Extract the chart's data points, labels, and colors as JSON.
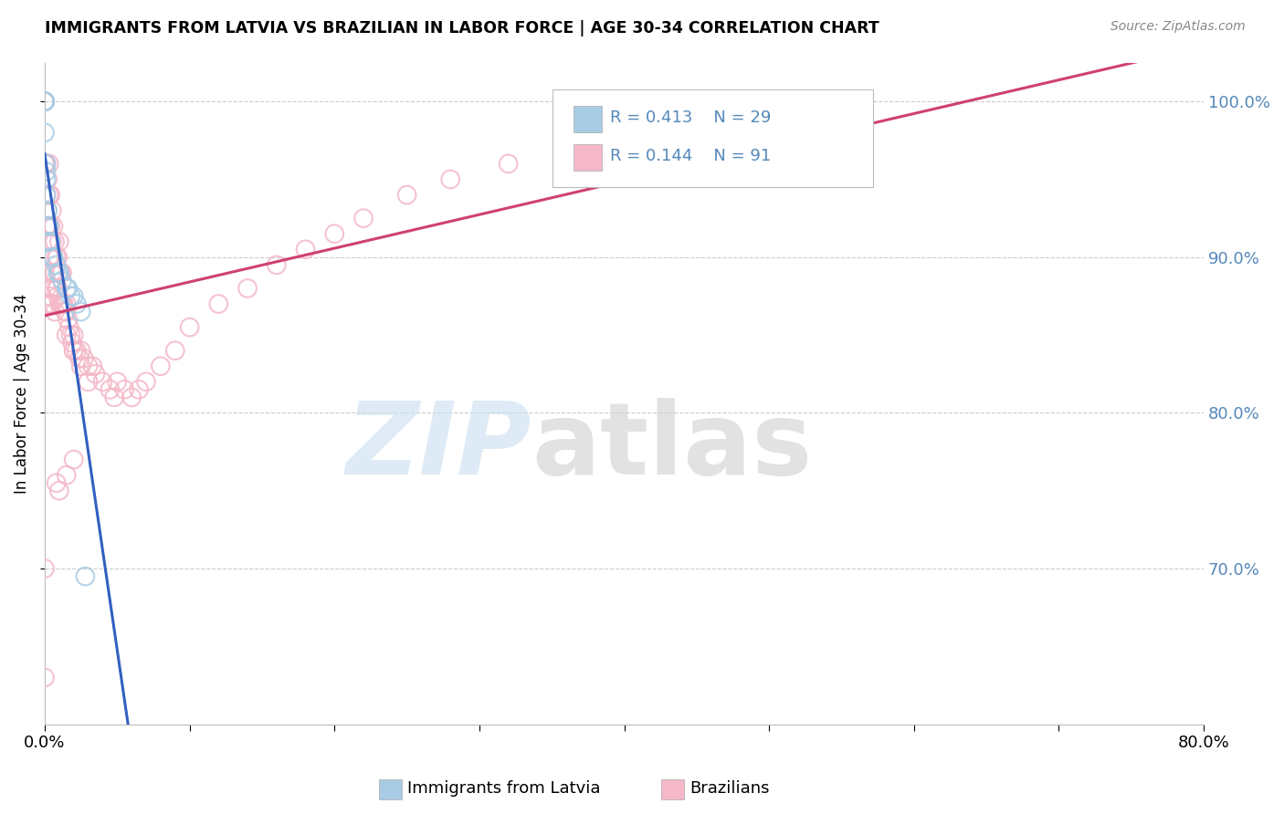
{
  "title": "IMMIGRANTS FROM LATVIA VS BRAZILIAN IN LABOR FORCE | AGE 30-34 CORRELATION CHART",
  "source": "Source: ZipAtlas.com",
  "ylabel": "In Labor Force | Age 30-34",
  "xmin": 0.0,
  "xmax": 0.8,
  "ymin": 0.6,
  "ymax": 1.025,
  "yticks": [
    0.7,
    0.8,
    0.9,
    1.0
  ],
  "ytick_labels_right": [
    "70.0%",
    "80.0%",
    "90.0%",
    "100.0%"
  ],
  "xtick_vals": [
    0.0,
    0.1,
    0.2,
    0.3,
    0.4,
    0.5,
    0.6,
    0.7,
    0.8
  ],
  "xtick_labels": [
    "0.0%",
    "",
    "",
    "",
    "",
    "",
    "",
    "",
    "80.0%"
  ],
  "legend_r_latvia": "R = 0.413",
  "legend_n_latvia": "N = 29",
  "legend_r_brazil": "R = 0.144",
  "legend_n_brazil": "N = 91",
  "color_latvia": "#a8cce4",
  "color_brazil": "#f4b8c8",
  "color_line_latvia": "#3060c0",
  "color_line_brazil": "#d04070",
  "color_tick_right": "#5588bb",
  "background_color": "#ffffff",
  "grid_color": "#cccccc",
  "scatter_latvia_x": [
    0.0,
    0.0,
    0.0,
    0.0,
    0.0,
    0.0,
    0.0,
    0.001,
    0.001,
    0.001,
    0.001,
    0.002,
    0.002,
    0.003,
    0.003,
    0.004,
    0.005,
    0.006,
    0.008,
    0.009,
    0.01,
    0.012,
    0.015,
    0.016,
    0.018,
    0.02,
    0.022,
    0.025,
    0.028
  ],
  "scatter_latvia_y": [
    1.0,
    1.0,
    1.0,
    1.0,
    1.0,
    1.0,
    0.98,
    0.96,
    0.955,
    0.95,
    0.94,
    0.93,
    0.92,
    0.92,
    0.91,
    0.91,
    0.9,
    0.9,
    0.895,
    0.89,
    0.89,
    0.885,
    0.88,
    0.88,
    0.875,
    0.875,
    0.87,
    0.865,
    0.695
  ],
  "scatter_brazil_x": [
    0.0,
    0.0,
    0.0,
    0.0,
    0.001,
    0.001,
    0.001,
    0.002,
    0.002,
    0.002,
    0.003,
    0.003,
    0.003,
    0.003,
    0.004,
    0.004,
    0.004,
    0.005,
    0.005,
    0.005,
    0.006,
    0.006,
    0.006,
    0.007,
    0.007,
    0.008,
    0.008,
    0.009,
    0.009,
    0.01,
    0.01,
    0.01,
    0.011,
    0.011,
    0.012,
    0.012,
    0.013,
    0.014,
    0.015,
    0.015,
    0.016,
    0.017,
    0.018,
    0.019,
    0.02,
    0.02,
    0.022,
    0.024,
    0.025,
    0.027,
    0.03,
    0.033,
    0.035,
    0.04,
    0.045,
    0.048,
    0.05,
    0.055,
    0.06,
    0.065,
    0.07,
    0.08,
    0.09,
    0.1,
    0.12,
    0.14,
    0.16,
    0.18,
    0.2,
    0.22,
    0.25,
    0.28,
    0.32,
    0.36,
    0.4,
    0.001,
    0.002,
    0.003,
    0.004,
    0.005,
    0.007,
    0.009,
    0.012,
    0.015,
    0.02,
    0.025,
    0.03,
    0.02,
    0.015,
    0.01,
    0.008
  ],
  "scatter_brazil_y": [
    1.0,
    0.96,
    0.7,
    0.63,
    0.96,
    0.94,
    0.92,
    0.95,
    0.93,
    0.91,
    0.96,
    0.94,
    0.92,
    0.9,
    0.94,
    0.92,
    0.9,
    0.93,
    0.91,
    0.89,
    0.92,
    0.9,
    0.88,
    0.91,
    0.89,
    0.9,
    0.88,
    0.9,
    0.88,
    0.91,
    0.89,
    0.87,
    0.89,
    0.87,
    0.89,
    0.87,
    0.87,
    0.865,
    0.87,
    0.85,
    0.86,
    0.855,
    0.85,
    0.845,
    0.85,
    0.84,
    0.84,
    0.835,
    0.84,
    0.835,
    0.83,
    0.83,
    0.825,
    0.82,
    0.815,
    0.81,
    0.82,
    0.815,
    0.81,
    0.815,
    0.82,
    0.83,
    0.84,
    0.855,
    0.87,
    0.88,
    0.895,
    0.905,
    0.915,
    0.925,
    0.94,
    0.95,
    0.96,
    0.97,
    0.98,
    0.88,
    0.87,
    0.875,
    0.88,
    0.87,
    0.865,
    0.875,
    0.87,
    0.865,
    0.84,
    0.83,
    0.82,
    0.77,
    0.76,
    0.75,
    0.755
  ]
}
